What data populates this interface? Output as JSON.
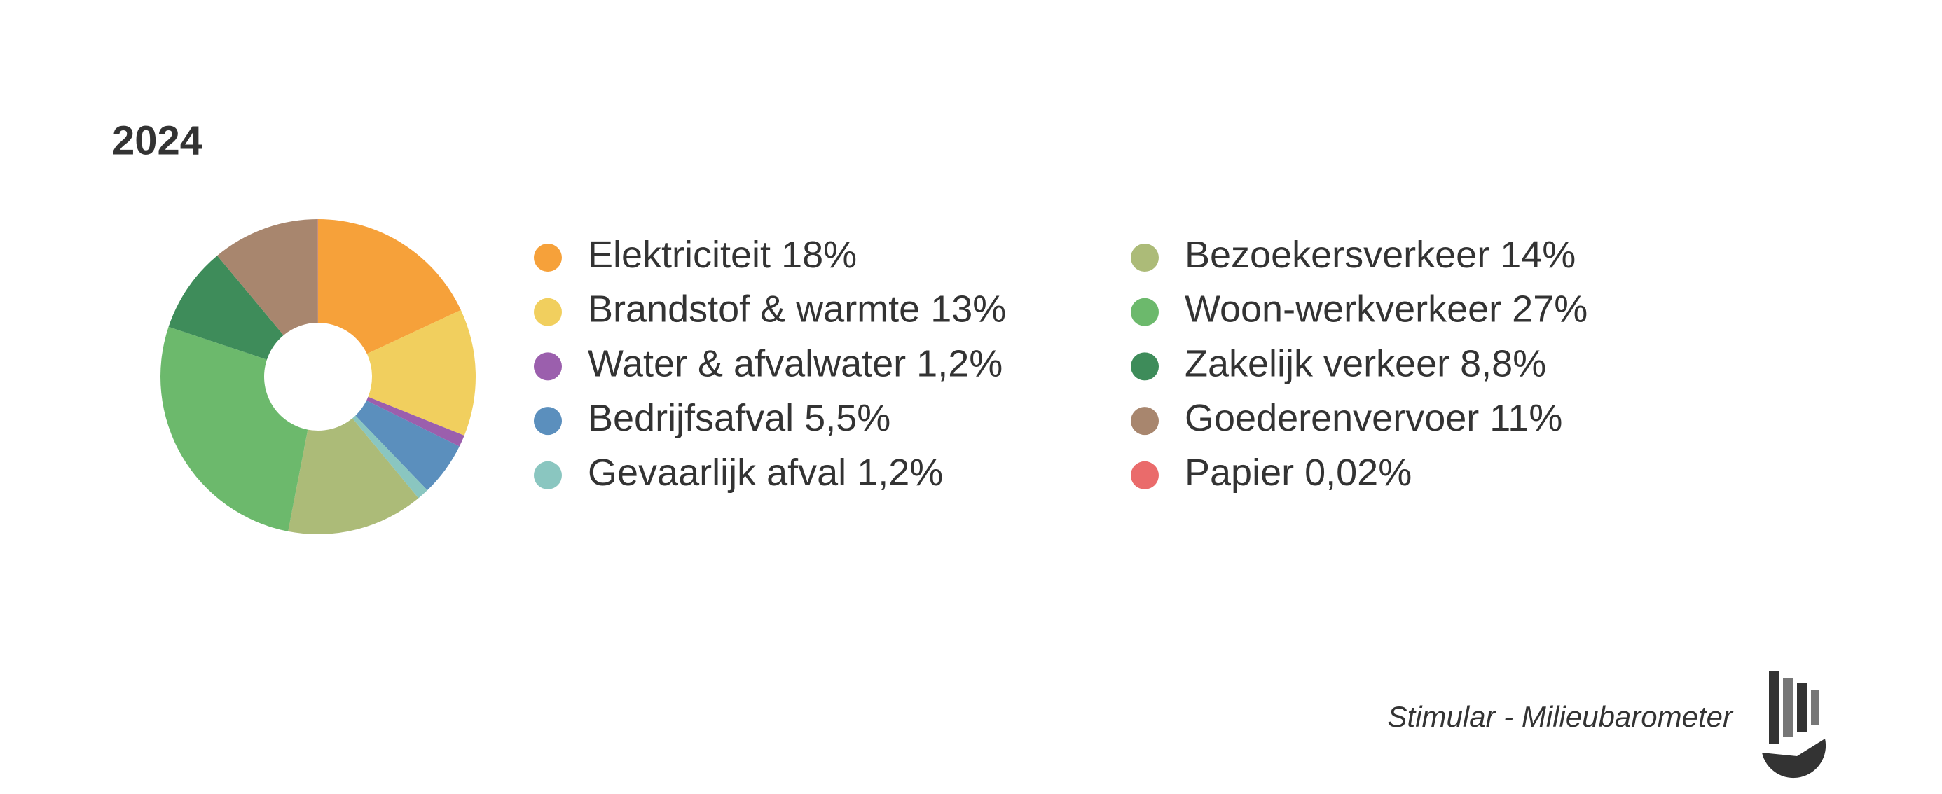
{
  "chart_data": {
    "type": "donut",
    "title": "2024",
    "categories": [
      "Elektriciteit",
      "Brandstof & warmte",
      "Water & afvalwater",
      "Bedrijfsafval",
      "Gevaarlijk afval",
      "Bezoekersverkeer",
      "Woon-werkverkeer",
      "Zakelijk verkeer",
      "Goederenvervoer",
      "Papier"
    ],
    "values": [
      18,
      13,
      1.2,
      5.5,
      1.2,
      14,
      27,
      8.8,
      11,
      0.02
    ],
    "value_labels": [
      "18%",
      "13%",
      "1,2%",
      "5,5%",
      "1,2%",
      "14%",
      "27%",
      "8,8%",
      "11%",
      "0,02%"
    ],
    "colors": [
      "#f6a13a",
      "#f1cf5e",
      "#9b5fad",
      "#5b8fbd",
      "#8ac6c0",
      "#acbb78",
      "#6cb96c",
      "#3e8c5a",
      "#a8866e",
      "#ea6b6b"
    ],
    "source": "Stimular - Milieubarometer"
  }
}
